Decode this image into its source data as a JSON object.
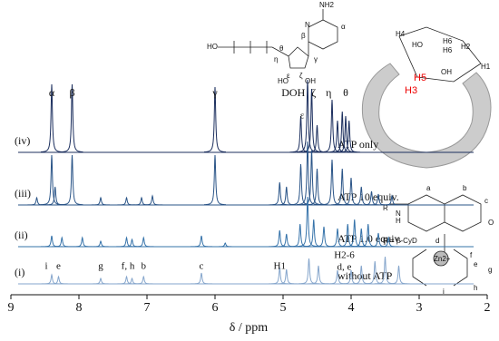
{
  "chart_data": {
    "type": "nmr",
    "xlabel": "δ / ppm",
    "xlim": [
      9,
      2
    ],
    "xticks": [
      9,
      8,
      7,
      6,
      5,
      4,
      3,
      2
    ],
    "series": [
      {
        "name": "ATP only",
        "label": "(iv)",
        "color": "#1c2f5e",
        "x": [
          8.4,
          8.1,
          6.0,
          4.74,
          4.64,
          4.58,
          4.5,
          4.28,
          4.2,
          4.13,
          4.08,
          4.03
        ],
        "values": [
          75,
          75,
          72,
          40,
          80,
          70,
          30,
          58,
          35,
          45,
          40,
          35
        ]
      },
      {
        "name": "ATP 10 equiv.",
        "label": "(iii)",
        "color": "#2a5487",
        "x": [
          8.62,
          8.4,
          8.35,
          8.1,
          7.68,
          7.3,
          7.08,
          6.92,
          6.0,
          5.05,
          4.95,
          4.74,
          4.64,
          4.58,
          4.5,
          4.28,
          4.13,
          4.0,
          3.85,
          3.7,
          3.6,
          3.4
        ],
        "values": [
          8,
          55,
          20,
          55,
          8,
          8,
          8,
          10,
          55,
          25,
          20,
          45,
          70,
          60,
          40,
          50,
          40,
          30,
          20,
          15,
          12,
          10
        ]
      },
      {
        "name": "ATP 1.0 equiv.",
        "label": "(ii)",
        "color": "#3673aa",
        "x": [
          8.4,
          8.25,
          7.95,
          7.68,
          7.3,
          7.22,
          7.05,
          6.2,
          5.85,
          5.05,
          4.95,
          4.75,
          4.64,
          4.55,
          4.4,
          4.2,
          4.05,
          3.95,
          3.85,
          3.75,
          3.6,
          3.45
        ],
        "values": [
          12,
          10,
          10,
          6,
          10,
          8,
          10,
          12,
          4,
          18,
          14,
          25,
          55,
          30,
          22,
          20,
          25,
          30,
          20,
          25,
          15,
          10
        ]
      },
      {
        "name": "without ATP",
        "label": "(i)",
        "color": "#86a6cc",
        "x": [
          8.4,
          8.3,
          7.68,
          7.3,
          7.22,
          7.05,
          6.2,
          5.05,
          4.95,
          4.62,
          4.48,
          4.2,
          4.0,
          3.85,
          3.65,
          3.5,
          3.3
        ],
        "values": [
          10,
          8,
          6,
          8,
          6,
          8,
          12,
          18,
          16,
          28,
          20,
          15,
          15,
          20,
          25,
          30,
          20
        ]
      }
    ],
    "top_labels": [
      {
        "text": "α",
        "x": 8.4
      },
      {
        "text": "β",
        "x": 8.1
      },
      {
        "text": "γ",
        "x": 6.0
      },
      {
        "text": "DOH",
        "x": 4.85
      },
      {
        "text": "ζ",
        "x": 4.55
      },
      {
        "text": "η",
        "x": 4.33
      },
      {
        "text": "θ",
        "x": 4.08
      }
    ],
    "mid_labels": [
      {
        "text": "ε",
        "x": 4.72
      }
    ],
    "low_labels": [
      {
        "text": "i",
        "x": 8.48
      },
      {
        "text": "e",
        "x": 8.3
      },
      {
        "text": "g",
        "x": 7.68
      },
      {
        "text": "f, h",
        "x": 7.28
      },
      {
        "text": "b",
        "x": 7.05
      },
      {
        "text": "c",
        "x": 6.2
      },
      {
        "text": "H1",
        "x": 5.05
      }
    ],
    "h_labels": [
      {
        "text": "H2-6",
        "x": 4.1
      },
      {
        "text": "d, e",
        "x": 4.1
      }
    ]
  },
  "structures": {
    "atp": [
      "NH2",
      "HO",
      "N",
      "α",
      "β",
      "γ",
      "θ",
      "η",
      "ζ",
      "ε",
      "OH",
      "HO"
    ],
    "cyclodextrin": [
      "H4",
      "HO",
      "H6",
      "H6",
      "H2",
      "OH",
      "H1",
      "H3",
      "H5"
    ],
    "zinc_complex": [
      "R",
      "N",
      "H",
      "O",
      "a",
      "b",
      "c",
      "d",
      "e",
      "f",
      "g",
      "h",
      "i",
      "R = β-CyD",
      "Zn2+"
    ]
  }
}
